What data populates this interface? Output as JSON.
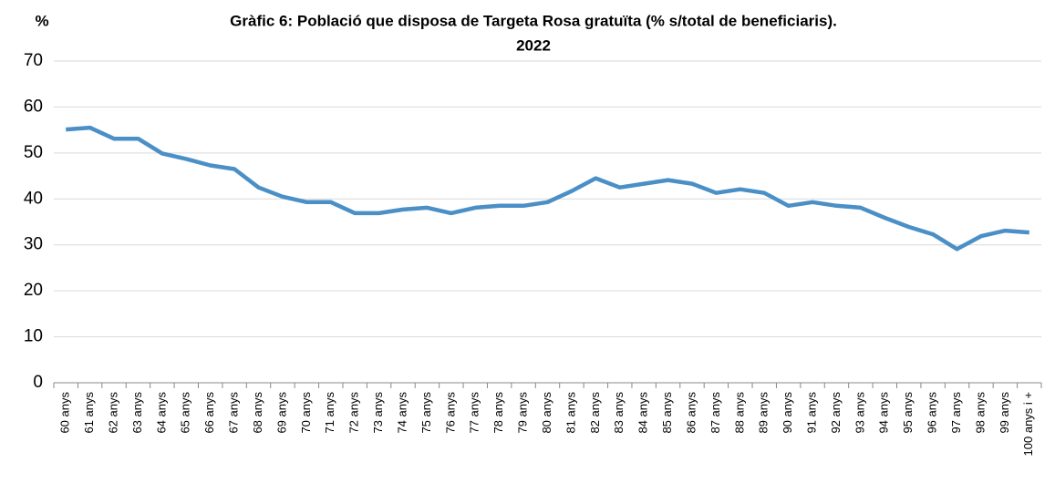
{
  "chart_data": {
    "type": "line",
    "title": [
      "Gràfic 6: Població que disposa de Targeta Rosa gratuïta (% s/total de beneficiaris).",
      "2022"
    ],
    "y_label": "%",
    "categories": [
      "60 anys",
      "61 anys",
      "62 anys",
      "63 anys",
      "64 anys",
      "65 anys",
      "66 anys",
      "67 anys",
      "68 anys",
      "69 anys",
      "70 anys",
      "71 anys",
      "72 anys",
      "73 anys",
      "74 anys",
      "75 anys",
      "76 anys",
      "77 anys",
      "78 anys",
      "79 anys",
      "80 anys",
      "81 anys",
      "82 anys",
      "83 anys",
      "84 anys",
      "85 anys",
      "86 anys",
      "87 anys",
      "88 anys",
      "89 anys",
      "90 anys",
      "91 anys",
      "92 anys",
      "93 anys",
      "94 anys",
      "95 anys",
      "96 anys",
      "97 anys",
      "98 anys",
      "99 anys",
      "100 anys i +"
    ],
    "values": [
      55.1,
      55.5,
      53.1,
      53.1,
      49.9,
      48.7,
      47.3,
      46.5,
      42.5,
      40.5,
      39.3,
      39.3,
      36.9,
      36.9,
      37.7,
      38.1,
      36.9,
      38.1,
      38.5,
      38.5,
      39.3,
      41.7,
      44.5,
      42.5,
      43.3,
      44.1,
      43.3,
      41.3,
      42.1,
      41.3,
      38.5,
      39.3,
      38.5,
      38.1,
      35.9,
      33.9,
      32.3,
      29.1,
      31.9,
      33.1,
      32.7
    ],
    "color": "#4a8fc6",
    "ylim": [
      0,
      70
    ],
    "yticks": [
      0,
      10,
      20,
      30,
      40,
      50,
      60,
      70
    ],
    "grid": true
  }
}
